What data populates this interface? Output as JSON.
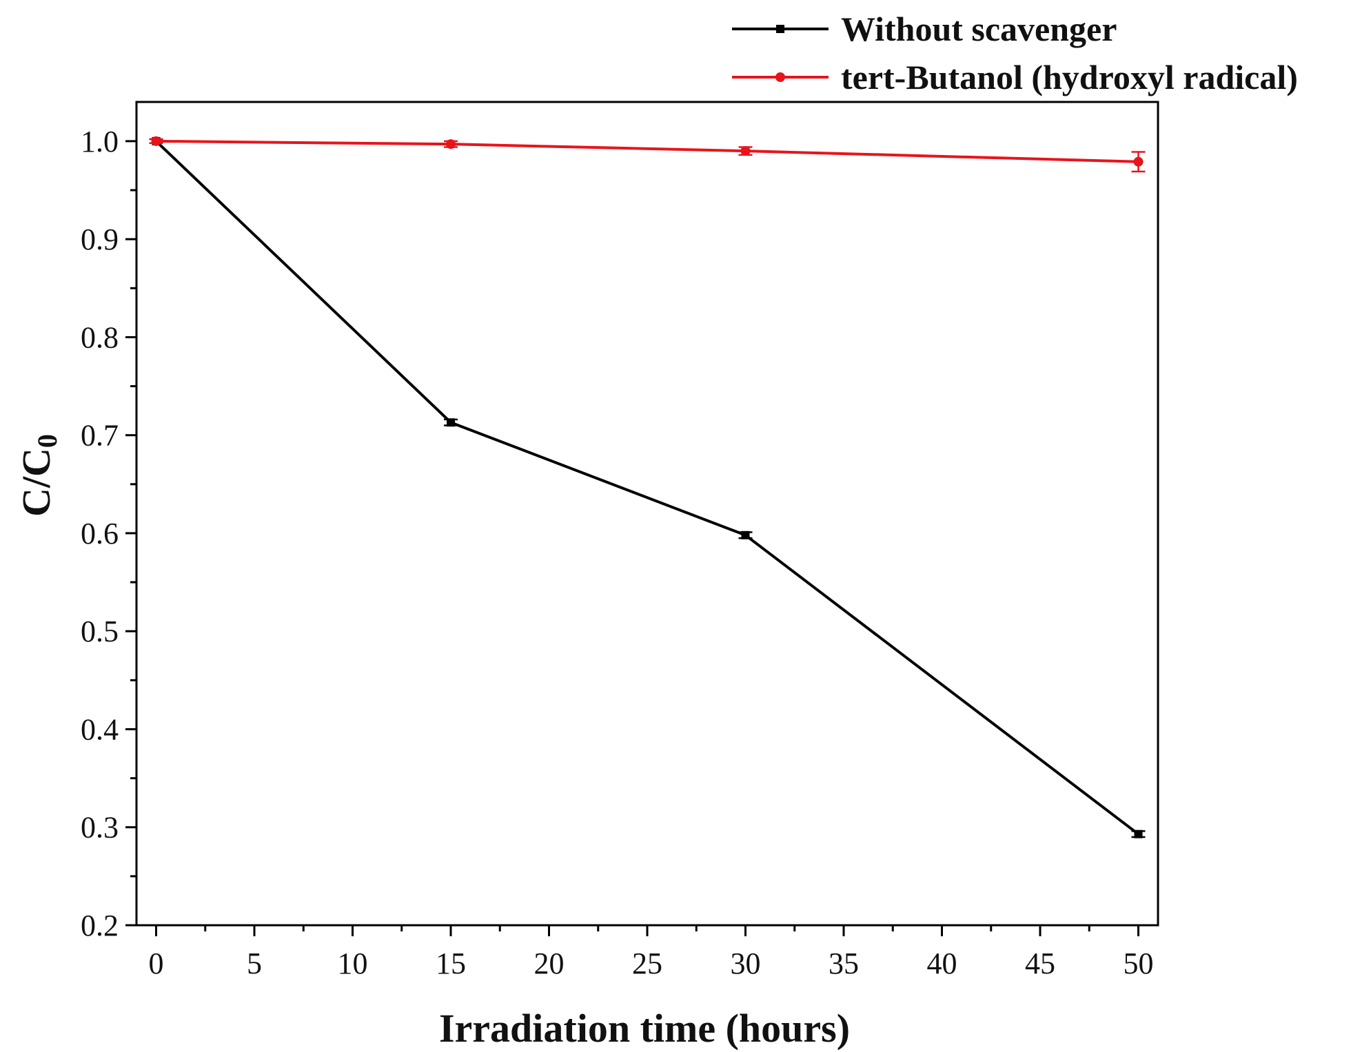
{
  "chart_data": {
    "type": "line",
    "title": "",
    "xlabel": "Irradiation time (hours)",
    "ylabel": "C/C0",
    "ylabel_main": "C/C",
    "ylabel_sub": "0",
    "xlim": [
      -1,
      51
    ],
    "ylim": [
      0.2,
      1.04
    ],
    "x_ticks": [
      0,
      5,
      10,
      15,
      20,
      25,
      30,
      35,
      40,
      45,
      50
    ],
    "x_tick_labels": [
      "0",
      "5",
      "10",
      "15",
      "20",
      "25",
      "30",
      "35",
      "40",
      "45",
      "50"
    ],
    "y_ticks": [
      0.2,
      0.3,
      0.4,
      0.5,
      0.6,
      0.7,
      0.8,
      0.9,
      1.0
    ],
    "y_tick_labels": [
      "0.2",
      "0.3",
      "0.4",
      "0.5",
      "0.6",
      "0.7",
      "0.8",
      "0.9",
      "1.0"
    ],
    "grid": false,
    "legend_position": "top-right, above plot",
    "series": [
      {
        "name": "Without scavenger",
        "color": "#000000",
        "marker": "square",
        "x": [
          0,
          15,
          30,
          50
        ],
        "values": [
          1.0,
          0.713,
          0.598,
          0.293
        ],
        "errors": [
          0.002,
          0.003,
          0.003,
          0.003
        ]
      },
      {
        "name": "tert-Butanol (hydroxyl radical)",
        "color": "#e8141b",
        "marker": "circle",
        "x": [
          0,
          15,
          30,
          50
        ],
        "values": [
          1.0,
          0.997,
          0.99,
          0.979
        ],
        "errors": [
          0.002,
          0.003,
          0.004,
          0.01
        ]
      }
    ]
  }
}
